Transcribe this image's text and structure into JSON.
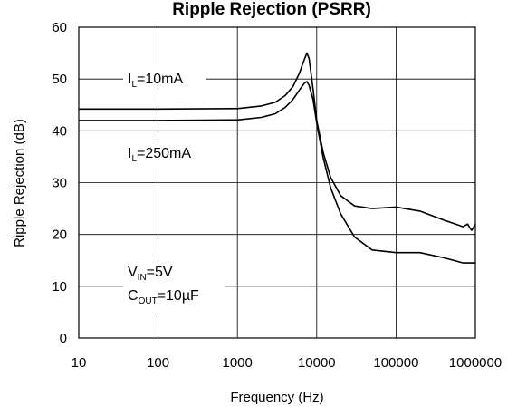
{
  "chart_data": {
    "type": "line",
    "title": "Ripple Rejection (PSRR)",
    "xlabel": "Frequency (Hz)",
    "ylabel": "Ripple Rejection (dB)",
    "x_scale": "log",
    "xlim": [
      10,
      1000000
    ],
    "ylim": [
      0,
      60
    ],
    "grid": true,
    "x_ticks": [
      "10",
      "100",
      "1000",
      "10000",
      "100000",
      "1000000"
    ],
    "y_ticks": [
      "0",
      "10",
      "20",
      "30",
      "40",
      "50",
      "60"
    ],
    "series": [
      {
        "name": "IL=10mA",
        "color": "#000000",
        "x": [
          10,
          100,
          1000,
          2000,
          3000,
          4000,
          5000,
          6000,
          7000,
          7500,
          8000,
          8500,
          9000,
          10000,
          12000,
          15000,
          20000,
          30000,
          50000,
          100000,
          200000,
          400000,
          700000,
          800000,
          850000,
          900000,
          1000000
        ],
        "y": [
          44.2,
          44.2,
          44.3,
          44.8,
          45.5,
          46.8,
          48.5,
          51,
          53.8,
          55,
          54,
          51,
          48,
          42,
          36,
          31,
          27.5,
          25.5,
          25,
          25.3,
          24.5,
          22.8,
          21.5,
          22,
          21.3,
          20.8,
          22
        ]
      },
      {
        "name": "IL=250mA",
        "color": "#000000",
        "x": [
          10,
          100,
          1000,
          2000,
          3000,
          4000,
          5000,
          6000,
          7000,
          7500,
          8000,
          9000,
          10000,
          12000,
          15000,
          20000,
          30000,
          50000,
          100000,
          200000,
          400000,
          700000,
          1000000
        ],
        "y": [
          42,
          42,
          42.1,
          42.6,
          43.3,
          44.5,
          46,
          47.8,
          49.2,
          49.5,
          48.8,
          46,
          41.5,
          35,
          29,
          24,
          19.5,
          17,
          16.5,
          16.5,
          15.5,
          14.5,
          14.5
        ]
      }
    ],
    "annotations": {
      "il_10": {
        "main": "I",
        "sub": "L",
        "rest": "=10mA"
      },
      "il_250": {
        "main": "I",
        "sub": "L",
        "rest": "=250mA"
      },
      "vin": {
        "main": "V",
        "sub": "IN",
        "rest": "=5V"
      },
      "cout": {
        "main": "C",
        "sub": "OUT",
        "rest": "=10µF"
      }
    }
  }
}
